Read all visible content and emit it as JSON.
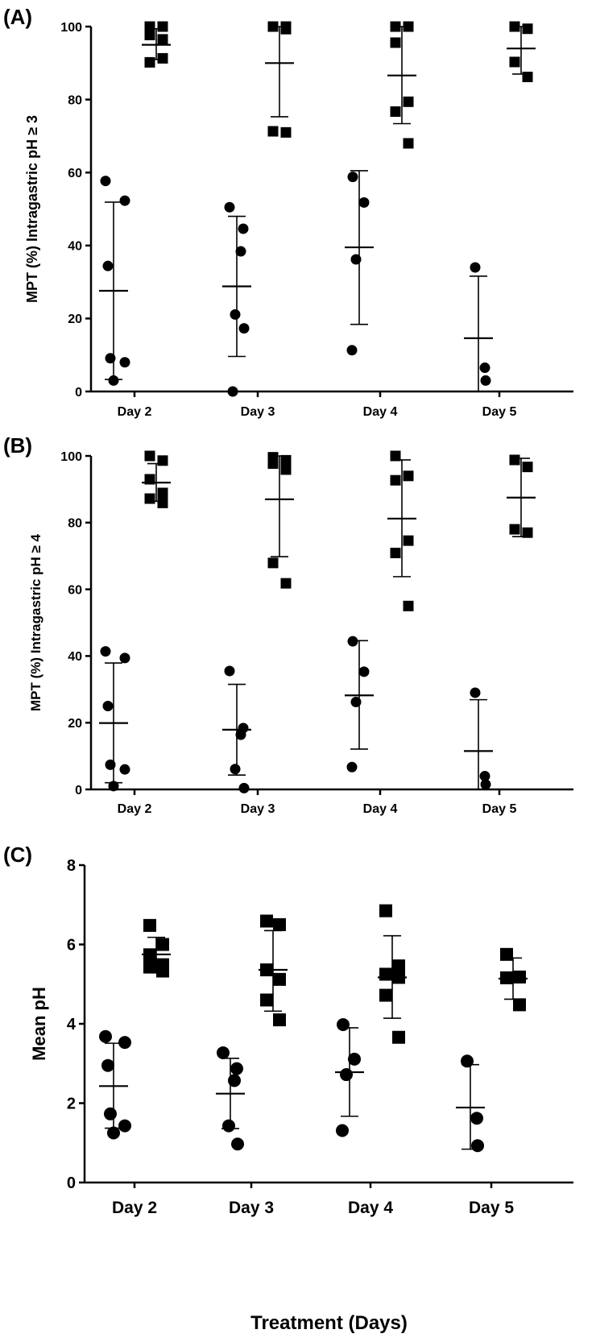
{
  "chart_data": [
    {
      "type": "scatter",
      "panel_label": "(A)",
      "ylabel": "MPT (%) Intragastric pH ≥ 3",
      "ylim": [
        0,
        100
      ],
      "yticks": [
        "0",
        "20",
        "40",
        "60",
        "80",
        "100"
      ],
      "categories": [
        "Day 2",
        "Day 3",
        "Day 4",
        "Day 5"
      ],
      "series": [
        {
          "name": "circles",
          "marker": "circle",
          "points": [
            [
              57.7,
              52.3,
              34.4,
              9.1,
              8.0,
              3.0
            ],
            [
              50.5,
              44.6,
              38.4,
              21.1,
              17.3,
              0.0
            ],
            [
              58.8,
              51.8,
              36.2,
              11.3
            ],
            [
              34.0,
              6.5,
              3.0
            ]
          ],
          "mean": [
            27.6,
            28.8,
            39.5,
            14.6
          ],
          "sd_low": [
            3.3,
            9.6,
            18.4,
            0.0
          ],
          "sd_high": [
            51.9,
            48.0,
            60.5,
            31.6
          ]
        },
        {
          "name": "squares",
          "marker": "square",
          "points": [
            [
              100.0,
              100.0,
              97.7,
              96.5,
              90.2,
              91.3
            ],
            [
              100.0,
              100.0,
              100.0,
              99.3,
              71.3,
              71.0
            ],
            [
              100.0,
              100.0,
              95.6,
              79.4,
              76.7,
              68.0
            ],
            [
              100.0,
              99.4,
              90.3,
              86.2
            ]
          ],
          "mean": [
            95.0,
            90.0,
            86.6,
            94.0
          ],
          "sd_low": [
            91.0,
            75.3,
            73.4,
            87.0
          ],
          "sd_high": [
            99.4,
            100.0,
            100.0,
            100.0
          ]
        }
      ]
    },
    {
      "type": "scatter",
      "panel_label": "(B)",
      "ylabel": "MPT (%) Intragastric pH ≥ 4",
      "ylim": [
        0,
        100
      ],
      "yticks": [
        "0",
        "20",
        "40",
        "60",
        "80",
        "100"
      ],
      "categories": [
        "Day 2",
        "Day 3",
        "Day 4",
        "Day 5"
      ],
      "series": [
        {
          "name": "circles",
          "marker": "circle",
          "points": [
            [
              41.4,
              39.4,
              25.0,
              7.4,
              6.0,
              1.0
            ],
            [
              35.5,
              18.4,
              16.4,
              6.1,
              0.4
            ],
            [
              44.4,
              35.3,
              26.2,
              6.7
            ],
            [
              29.0,
              4.0,
              1.5
            ]
          ],
          "mean": [
            19.9,
            17.9,
            28.2,
            11.5
          ],
          "sd_low": [
            2.0,
            4.3,
            12.1,
            0.0
          ],
          "sd_high": [
            37.9,
            31.5,
            44.6,
            26.9
          ]
        },
        {
          "name": "squares",
          "marker": "square",
          "points": [
            [
              100.0,
              98.6,
              93.0,
              88.9,
              87.2,
              85.9
            ],
            [
              99.6,
              98.7,
              97.7,
              95.9,
              67.9,
              61.8
            ],
            [
              100.0,
              94.0,
              92.7,
              74.6,
              70.9,
              55.0
            ],
            [
              98.8,
              96.7,
              78.0,
              77.0
            ]
          ],
          "mean": [
            92.0,
            87.0,
            81.2,
            87.5
          ],
          "sd_low": [
            86.4,
            69.8,
            63.8,
            75.8
          ],
          "sd_high": [
            97.7,
            100.0,
            98.8,
            99.3
          ]
        }
      ]
    },
    {
      "type": "scatter",
      "panel_label": "(C)",
      "ylabel": "Mean pH",
      "xlabel": "Treatment (Days)",
      "ylim": [
        0,
        8
      ],
      "yticks": [
        "0",
        "2",
        "4",
        "6",
        "8"
      ],
      "categories": [
        "Day 2",
        "Day 3",
        "Day 4",
        "Day 5"
      ],
      "series": [
        {
          "name": "circles",
          "marker": "circle",
          "points": [
            [
              3.68,
              3.53,
              2.95,
              1.73,
              1.43,
              1.25
            ],
            [
              3.27,
              2.87,
              2.57,
              1.43,
              0.97
            ],
            [
              3.98,
              3.11,
              2.72,
              1.31
            ],
            [
              3.06,
              1.62,
              0.93
            ]
          ],
          "mean": [
            2.43,
            2.24,
            2.78,
            1.89
          ],
          "sd_low": [
            1.37,
            1.36,
            1.67,
            0.84
          ],
          "sd_high": [
            3.51,
            3.13,
            3.9,
            2.97
          ]
        },
        {
          "name": "squares",
          "marker": "square",
          "points": [
            [
              6.48,
              6.0,
              5.74,
              5.49,
              5.43,
              5.33
            ],
            [
              6.59,
              6.5,
              5.36,
              5.12,
              4.6,
              4.1
            ],
            [
              6.85,
              5.46,
              5.25,
              5.17,
              4.72,
              3.66
            ],
            [
              5.75,
              5.18,
              5.16,
              4.48
            ]
          ],
          "mean": [
            5.75,
            5.36,
            5.17,
            5.14
          ],
          "sd_low": [
            5.3,
            4.32,
            4.14,
            4.62
          ],
          "sd_high": [
            6.18,
            6.35,
            6.22,
            5.66
          ]
        }
      ]
    }
  ]
}
